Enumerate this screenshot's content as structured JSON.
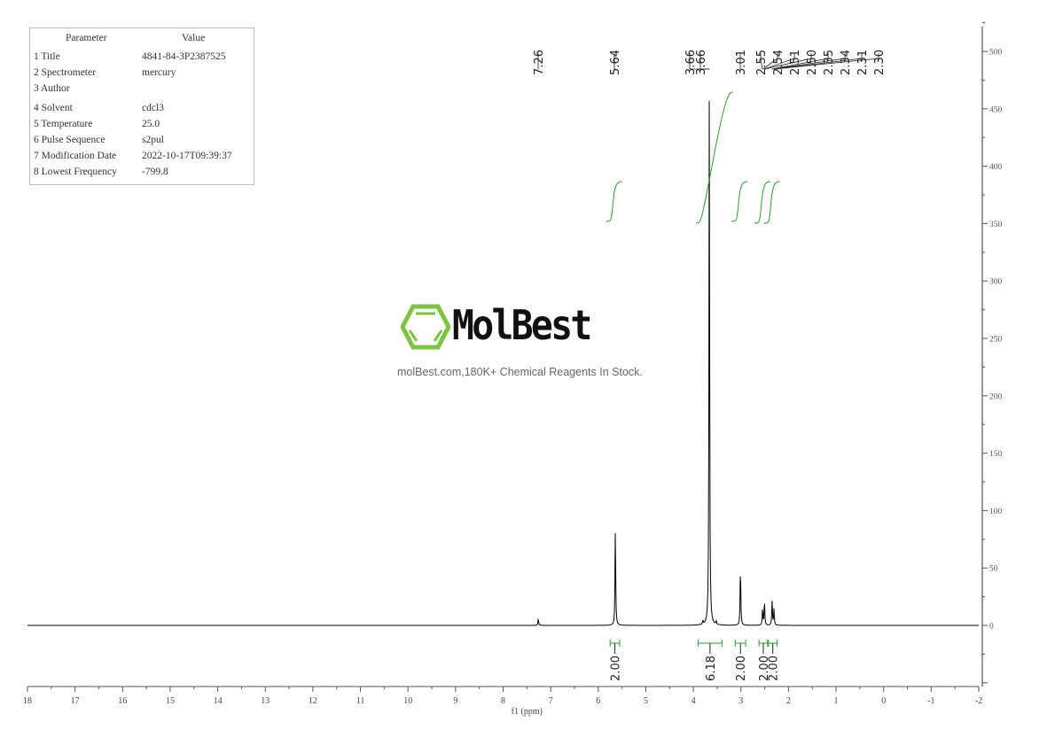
{
  "parameters": {
    "headers": [
      "Parameter",
      "Value"
    ],
    "rows": [
      [
        "1 Title",
        "4841-84-3P2387525"
      ],
      [
        "2 Spectrometer",
        "mercury"
      ],
      [
        "3 Author",
        ""
      ],
      [
        "4 Solvent",
        "cdcl3"
      ],
      [
        "5 Temperature",
        "25.0"
      ],
      [
        "6 Pulse Sequence",
        "s2pul"
      ],
      [
        "7 Modification Date",
        "2022-10-17T09:39:37"
      ],
      [
        "8 Lowest Frequency",
        "-799.8"
      ]
    ]
  },
  "watermark": {
    "brand": "MolBest",
    "tagline": "molBest.com,180K+ Chemical Reagents In Stock.",
    "color": "#7dc242"
  },
  "chart_data": {
    "type": "line",
    "xlabel": "f1 (ppm)",
    "xlim": [
      18,
      -2
    ],
    "ylim": [
      -50,
      525
    ],
    "x_ticks": [
      18,
      17,
      16,
      15,
      14,
      13,
      12,
      11,
      10,
      9,
      8,
      7,
      6,
      5,
      4,
      3,
      2,
      1,
      0,
      -1,
      -2
    ],
    "y_ticks": [
      0,
      50,
      100,
      150,
      200,
      250,
      300,
      350,
      400,
      450,
      500
    ],
    "peak_labels": [
      "7.26",
      "5.64",
      "3.66",
      "3.66",
      "3.01",
      "2.55",
      "2.54",
      "2.51",
      "2.50",
      "2.35",
      "2.34",
      "2.31",
      "2.30"
    ],
    "peaks": [
      {
        "ppm": 7.26,
        "height": 6
      },
      {
        "ppm": 5.64,
        "height": 86
      },
      {
        "ppm": 3.665,
        "height": 470
      },
      {
        "ppm": 3.8,
        "height": 3
      },
      {
        "ppm": 3.52,
        "height": 3
      },
      {
        "ppm": 3.01,
        "height": 53
      },
      {
        "ppm": 2.545,
        "height": 15
      },
      {
        "ppm": 2.505,
        "height": 22
      },
      {
        "ppm": 2.345,
        "height": 22
      },
      {
        "ppm": 2.305,
        "height": 14
      }
    ],
    "integrals": [
      {
        "from": 5.75,
        "to": 5.55,
        "value": "2.00"
      },
      {
        "from": 3.9,
        "to": 3.4,
        "value": "6.18"
      },
      {
        "from": 3.12,
        "to": 2.9,
        "value": "2.00"
      },
      {
        "from": 2.62,
        "to": 2.44,
        "value": "2.00"
      },
      {
        "from": 2.42,
        "to": 2.24,
        "value": "2.00"
      }
    ],
    "spectrum_color": "#000000",
    "integral_color": "#2ca02c",
    "grid": false
  }
}
